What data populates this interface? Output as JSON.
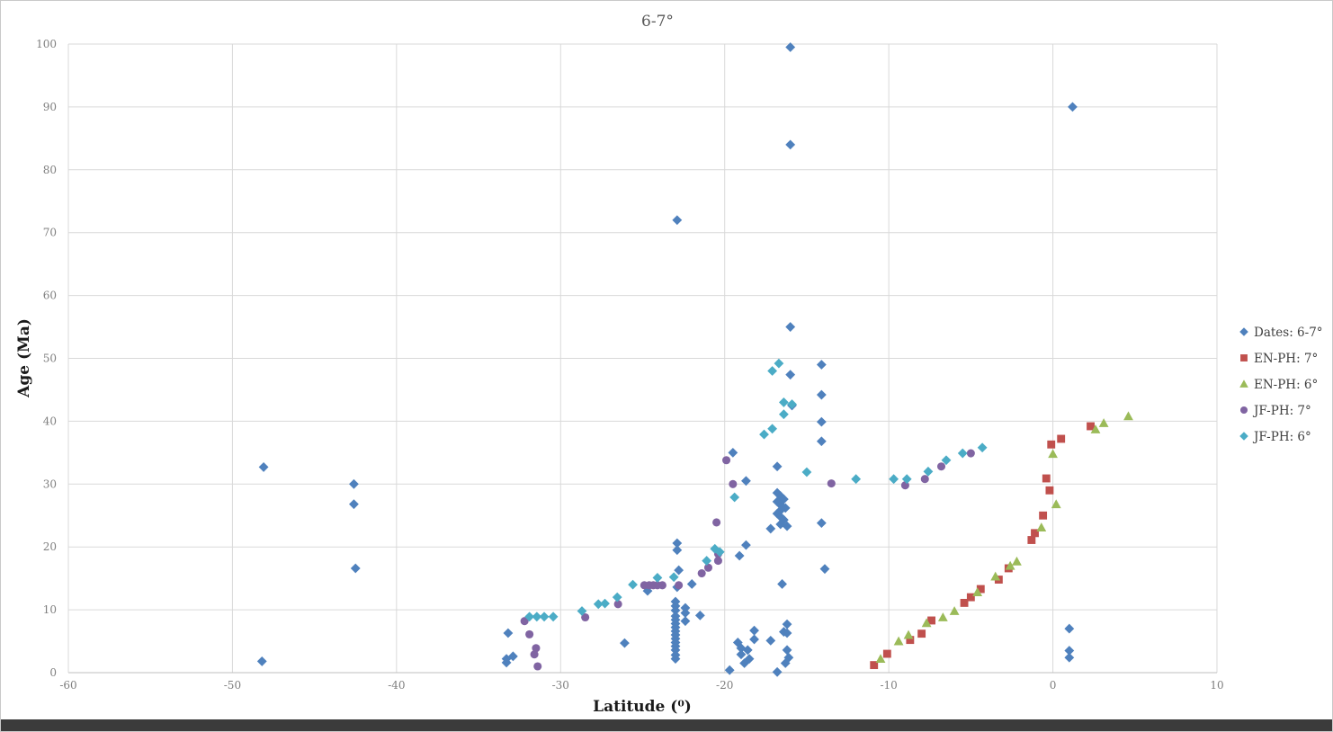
{
  "chart_data": {
    "type": "scatter",
    "title": "6-7°",
    "xlabel": "Latitude (⁰)",
    "ylabel": "Age (Ma)",
    "xlim": [
      -60,
      10
    ],
    "ylim": [
      0,
      100
    ],
    "xticks": [
      -60,
      -50,
      -40,
      -30,
      -20,
      -10,
      0,
      10
    ],
    "yticks": [
      0,
      10,
      20,
      30,
      40,
      50,
      60,
      70,
      80,
      90,
      100
    ],
    "grid": true,
    "legend_position": "right",
    "grid_color": "#d9d9d9",
    "axis_line_color": "#bfbfbf",
    "series": [
      {
        "name": "Dates: 6-7°",
        "marker": "diamond",
        "color": "#4F81BD",
        "points": [
          [
            -48.1,
            32.7
          ],
          [
            -48.2,
            1.8
          ],
          [
            -42.6,
            30.0
          ],
          [
            -42.6,
            26.8
          ],
          [
            -42.5,
            16.6
          ],
          [
            -33.2,
            6.3
          ],
          [
            -33.3,
            2.2
          ],
          [
            -32.9,
            2.6
          ],
          [
            -33.3,
            1.6
          ],
          [
            -26.1,
            4.7
          ],
          [
            -22.9,
            20.6
          ],
          [
            -22.9,
            19.5
          ],
          [
            -22.8,
            16.3
          ],
          [
            -24.7,
            13.0
          ],
          [
            -22.9,
            13.6
          ],
          [
            -22.0,
            14.1
          ],
          [
            -23.0,
            11.3
          ],
          [
            -23.0,
            10.6
          ],
          [
            -22.4,
            10.3
          ],
          [
            -23.0,
            9.9
          ],
          [
            -22.4,
            9.5
          ],
          [
            -21.5,
            9.1
          ],
          [
            -23.0,
            9.0
          ],
          [
            -23.0,
            8.4
          ],
          [
            -22.4,
            8.2
          ],
          [
            -23.0,
            7.8
          ],
          [
            -23.0,
            7.2
          ],
          [
            -23.0,
            6.6
          ],
          [
            -23.0,
            6.0
          ],
          [
            -23.0,
            5.4
          ],
          [
            -23.0,
            4.8
          ],
          [
            -23.0,
            4.2
          ],
          [
            -23.0,
            3.6
          ],
          [
            -23.0,
            2.8
          ],
          [
            -23.0,
            2.2
          ],
          [
            -22.9,
            72.0
          ],
          [
            -19.2,
            4.8
          ],
          [
            -19.0,
            3.9
          ],
          [
            -19.0,
            2.9
          ],
          [
            -18.2,
            6.7
          ],
          [
            -18.2,
            5.3
          ],
          [
            -18.6,
            3.6
          ],
          [
            -18.5,
            2.2
          ],
          [
            -18.8,
            1.5
          ],
          [
            -19.7,
            0.4
          ],
          [
            -18.7,
            20.3
          ],
          [
            -19.1,
            18.6
          ],
          [
            -18.7,
            30.5
          ],
          [
            -19.5,
            35.0
          ],
          [
            -16.8,
            32.8
          ],
          [
            -16.8,
            28.6
          ],
          [
            -16.6,
            28.1
          ],
          [
            -16.4,
            27.6
          ],
          [
            -16.8,
            27.2
          ],
          [
            -16.6,
            26.7
          ],
          [
            -16.3,
            26.2
          ],
          [
            -16.6,
            25.8
          ],
          [
            -16.8,
            25.3
          ],
          [
            -16.6,
            24.8
          ],
          [
            -16.4,
            24.3
          ],
          [
            -16.6,
            23.6
          ],
          [
            -17.2,
            22.9
          ],
          [
            -16.2,
            23.3
          ],
          [
            -16.5,
            14.1
          ],
          [
            -16.2,
            7.7
          ],
          [
            -16.4,
            6.5
          ],
          [
            -16.2,
            6.3
          ],
          [
            -16.2,
            3.6
          ],
          [
            -16.1,
            2.4
          ],
          [
            -16.3,
            1.5
          ],
          [
            -16.8,
            0.1
          ],
          [
            -17.2,
            5.1
          ],
          [
            -16.0,
            47.4
          ],
          [
            -15.9,
            42.5
          ],
          [
            -16.0,
            55.0
          ],
          [
            -16.0,
            84.0
          ],
          [
            -16.0,
            99.5
          ],
          [
            -14.1,
            49.0
          ],
          [
            -14.1,
            44.2
          ],
          [
            -14.1,
            39.9
          ],
          [
            -14.1,
            36.8
          ],
          [
            -14.1,
            23.8
          ],
          [
            -13.9,
            16.5
          ],
          [
            1.2,
            90.0
          ],
          [
            1.0,
            7.0
          ],
          [
            1.0,
            3.5
          ],
          [
            1.0,
            2.4
          ]
        ]
      },
      {
        "name": "EN-PH: 7°",
        "marker": "square",
        "color": "#C0504D",
        "points": [
          [
            -10.9,
            1.2
          ],
          [
            -10.1,
            3.0
          ],
          [
            -8.7,
            5.2
          ],
          [
            -8.0,
            6.2
          ],
          [
            -7.4,
            8.3
          ],
          [
            -5.4,
            11.1
          ],
          [
            -5.0,
            12.0
          ],
          [
            -4.4,
            13.3
          ],
          [
            -3.3,
            14.8
          ],
          [
            -2.7,
            16.6
          ],
          [
            -1.3,
            21.1
          ],
          [
            -1.1,
            22.2
          ],
          [
            -0.6,
            25.0
          ],
          [
            -0.2,
            29.0
          ],
          [
            -0.4,
            30.9
          ],
          [
            -0.1,
            36.3
          ],
          [
            0.5,
            37.2
          ],
          [
            2.3,
            39.2
          ]
        ]
      },
      {
        "name": "EN-PH: 6°",
        "marker": "triangle",
        "color": "#9BBB59",
        "points": [
          [
            -10.5,
            2.2
          ],
          [
            -9.4,
            5.0
          ],
          [
            -8.8,
            6.0
          ],
          [
            -7.7,
            7.9
          ],
          [
            -6.7,
            8.8
          ],
          [
            -6.0,
            9.8
          ],
          [
            -4.6,
            12.8
          ],
          [
            -3.5,
            15.3
          ],
          [
            -2.6,
            17.0
          ],
          [
            -2.2,
            17.7
          ],
          [
            -0.7,
            23.1
          ],
          [
            0.2,
            26.8
          ],
          [
            0.0,
            34.8
          ],
          [
            2.6,
            38.7
          ],
          [
            3.1,
            39.7
          ],
          [
            4.6,
            40.8
          ]
        ]
      },
      {
        "name": "JF-PH: 7°",
        "marker": "circle",
        "color": "#8064A2",
        "points": [
          [
            -32.2,
            8.2
          ],
          [
            -31.9,
            6.1
          ],
          [
            -31.5,
            3.9
          ],
          [
            -31.6,
            2.9
          ],
          [
            -31.4,
            1.0
          ],
          [
            -28.5,
            8.8
          ],
          [
            -26.5,
            10.9
          ],
          [
            -24.9,
            13.9
          ],
          [
            -24.6,
            13.9
          ],
          [
            -24.35,
            13.9
          ],
          [
            -24.1,
            13.9
          ],
          [
            -23.8,
            13.9
          ],
          [
            -22.8,
            13.9
          ],
          [
            -21.4,
            15.8
          ],
          [
            -21.0,
            16.7
          ],
          [
            -20.4,
            17.8
          ],
          [
            -20.4,
            18.9
          ],
          [
            -20.5,
            23.9
          ],
          [
            -19.9,
            33.8
          ],
          [
            -19.5,
            30.0
          ],
          [
            -13.5,
            30.1
          ],
          [
            -9.0,
            29.8
          ],
          [
            -7.8,
            30.8
          ],
          [
            -6.8,
            32.8
          ],
          [
            -5.0,
            34.9
          ]
        ]
      },
      {
        "name": "JF-PH: 6°",
        "marker": "diamond",
        "color": "#4BACC6",
        "points": [
          [
            -31.9,
            8.9
          ],
          [
            -31.45,
            8.9
          ],
          [
            -31.0,
            8.9
          ],
          [
            -30.45,
            8.9
          ],
          [
            -28.7,
            9.8
          ],
          [
            -27.7,
            10.9
          ],
          [
            -27.3,
            11.0
          ],
          [
            -26.55,
            12.0
          ],
          [
            -25.6,
            14.0
          ],
          [
            -24.1,
            15.1
          ],
          [
            -23.1,
            15.2
          ],
          [
            -21.1,
            17.8
          ],
          [
            -20.6,
            19.7
          ],
          [
            -20.3,
            19.2
          ],
          [
            -19.4,
            27.9
          ],
          [
            -17.6,
            37.9
          ],
          [
            -17.1,
            38.8
          ],
          [
            -16.4,
            41.1
          ],
          [
            -15.9,
            42.7
          ],
          [
            -16.4,
            43.0
          ],
          [
            -17.1,
            48.0
          ],
          [
            -16.7,
            49.2
          ],
          [
            -15.0,
            31.9
          ],
          [
            -12.0,
            30.8
          ],
          [
            -9.7,
            30.8
          ],
          [
            -8.9,
            30.8
          ],
          [
            -7.6,
            32.0
          ],
          [
            -6.5,
            33.8
          ],
          [
            -5.5,
            34.9
          ],
          [
            -4.3,
            35.8
          ]
        ]
      }
    ]
  },
  "canvas": {
    "background_color": "#ffffff",
    "frame_color": "#c9c9c9",
    "bottom_bar_color": "#3b3b3b",
    "title_color": "#595959",
    "tick_color": "#7f7f7f",
    "legend_text_color": "#404040"
  }
}
